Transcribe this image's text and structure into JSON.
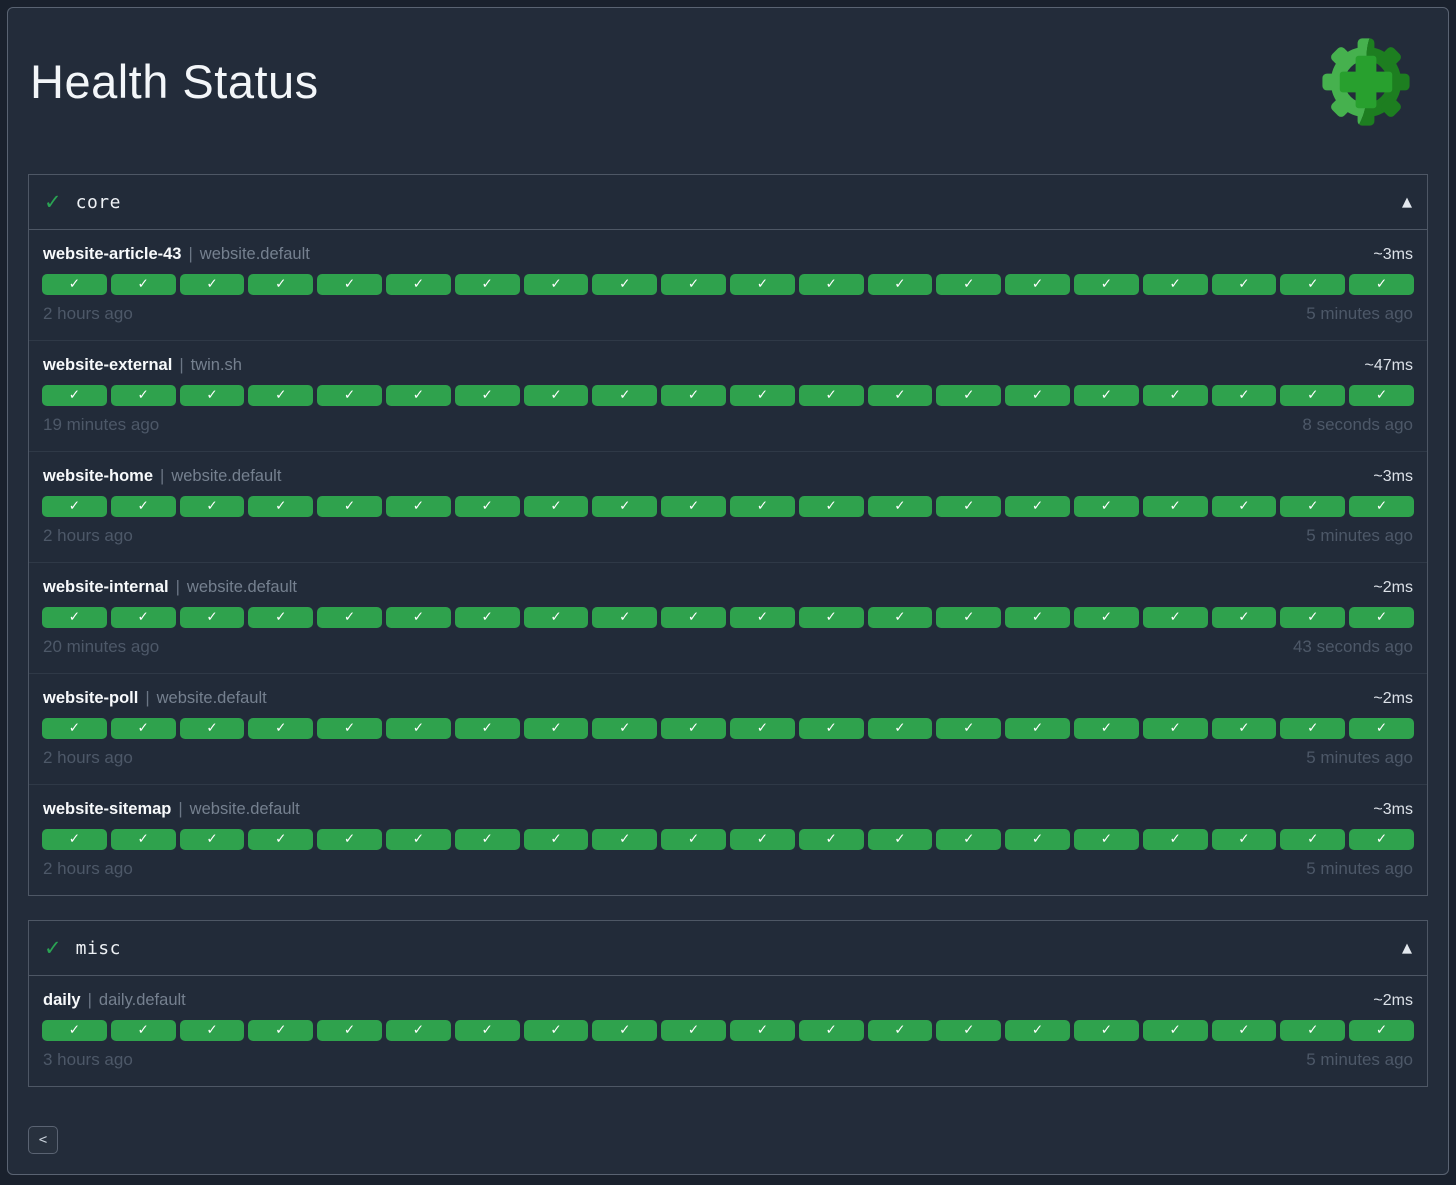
{
  "header": {
    "title": "Health Status"
  },
  "logo": {
    "name": "healthchecks-gear-plus-logo",
    "light_green": "#46b14e",
    "dark_green": "#1d7e20",
    "plus_green": "#28a02e"
  },
  "icons": {
    "section_check": "✓",
    "pill_check": "✓",
    "collapse_arrow": "▲"
  },
  "colors": {
    "background": "#232c3a",
    "pill_up": "#2fa24d",
    "panel_border": "#4e5765",
    "muted_text": "#4d5868"
  },
  "sections": [
    {
      "label": "core",
      "status": "up",
      "collapsed": false,
      "checks": [
        {
          "name": "website-article-43",
          "separator": "|",
          "group": "website.default",
          "latency": "~3ms",
          "oldest": "2 hours ago",
          "newest": "5 minutes ago",
          "history": [
            "up",
            "up",
            "up",
            "up",
            "up",
            "up",
            "up",
            "up",
            "up",
            "up",
            "up",
            "up",
            "up",
            "up",
            "up",
            "up",
            "up",
            "up",
            "up",
            "up"
          ]
        },
        {
          "name": "website-external",
          "separator": "|",
          "group": "twin.sh",
          "latency": "~47ms",
          "oldest": "19 minutes ago",
          "newest": "8 seconds ago",
          "history": [
            "up",
            "up",
            "up",
            "up",
            "up",
            "up",
            "up",
            "up",
            "up",
            "up",
            "up",
            "up",
            "up",
            "up",
            "up",
            "up",
            "up",
            "up",
            "up",
            "up"
          ]
        },
        {
          "name": "website-home",
          "separator": "|",
          "group": "website.default",
          "latency": "~3ms",
          "oldest": "2 hours ago",
          "newest": "5 minutes ago",
          "history": [
            "up",
            "up",
            "up",
            "up",
            "up",
            "up",
            "up",
            "up",
            "up",
            "up",
            "up",
            "up",
            "up",
            "up",
            "up",
            "up",
            "up",
            "up",
            "up",
            "up"
          ]
        },
        {
          "name": "website-internal",
          "separator": "|",
          "group": "website.default",
          "latency": "~2ms",
          "oldest": "20 minutes ago",
          "newest": "43 seconds ago",
          "history": [
            "up",
            "up",
            "up",
            "up",
            "up",
            "up",
            "up",
            "up",
            "up",
            "up",
            "up",
            "up",
            "up",
            "up",
            "up",
            "up",
            "up",
            "up",
            "up",
            "up"
          ]
        },
        {
          "name": "website-poll",
          "separator": "|",
          "group": "website.default",
          "latency": "~2ms",
          "oldest": "2 hours ago",
          "newest": "5 minutes ago",
          "history": [
            "up",
            "up",
            "up",
            "up",
            "up",
            "up",
            "up",
            "up",
            "up",
            "up",
            "up",
            "up",
            "up",
            "up",
            "up",
            "up",
            "up",
            "up",
            "up",
            "up"
          ]
        },
        {
          "name": "website-sitemap",
          "separator": "|",
          "group": "website.default",
          "latency": "~3ms",
          "oldest": "2 hours ago",
          "newest": "5 minutes ago",
          "history": [
            "up",
            "up",
            "up",
            "up",
            "up",
            "up",
            "up",
            "up",
            "up",
            "up",
            "up",
            "up",
            "up",
            "up",
            "up",
            "up",
            "up",
            "up",
            "up",
            "up"
          ]
        }
      ]
    },
    {
      "label": "misc",
      "status": "up",
      "collapsed": false,
      "checks": [
        {
          "name": "daily",
          "separator": "|",
          "group": "daily.default",
          "latency": "~2ms",
          "oldest": "3 hours ago",
          "newest": "5 minutes ago",
          "history": [
            "up",
            "up",
            "up",
            "up",
            "up",
            "up",
            "up",
            "up",
            "up",
            "up",
            "up",
            "up",
            "up",
            "up",
            "up",
            "up",
            "up",
            "up",
            "up",
            "up"
          ]
        }
      ]
    }
  ],
  "pagination": {
    "prev_label": "<"
  }
}
